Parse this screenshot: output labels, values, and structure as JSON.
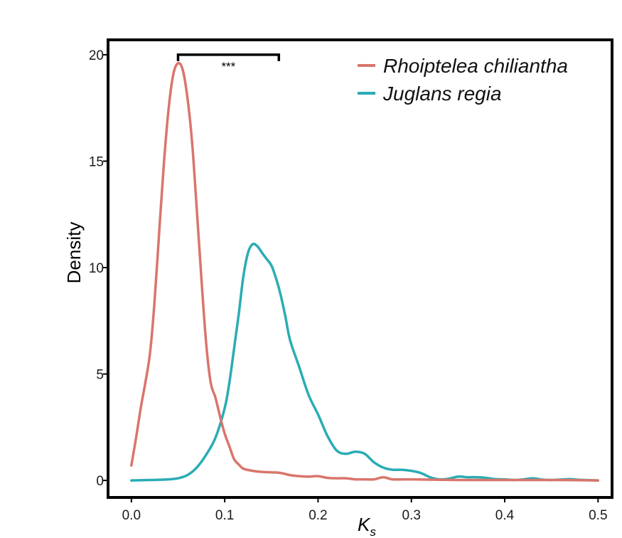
{
  "chart_data": {
    "type": "line",
    "xlabel": "K",
    "xlabel_subscript": "s",
    "ylabel": "Density",
    "xlim": [
      -0.025,
      0.515
    ],
    "ylim": [
      -0.8,
      20.7
    ],
    "x_ticks": [
      "0.0",
      "0.1",
      "0.2",
      "0.3",
      "0.4",
      "0.5"
    ],
    "y_ticks": [
      "0",
      "5",
      "10",
      "15",
      "20"
    ],
    "legend_position": "top-right",
    "significance": {
      "label": "***",
      "x_start": 0.05,
      "x_end": 0.158,
      "y": 20.0
    },
    "series": [
      {
        "name": "Rhoiptelea chiliantha",
        "color": "#d9756c",
        "points": [
          [
            0.0,
            0.7
          ],
          [
            0.005,
            2.0
          ],
          [
            0.01,
            3.4
          ],
          [
            0.015,
            4.6
          ],
          [
            0.02,
            6.0
          ],
          [
            0.025,
            8.5
          ],
          [
            0.03,
            11.8
          ],
          [
            0.035,
            15.0
          ],
          [
            0.04,
            17.5
          ],
          [
            0.045,
            19.1
          ],
          [
            0.05,
            19.6
          ],
          [
            0.055,
            19.3
          ],
          [
            0.06,
            18.0
          ],
          [
            0.065,
            15.9
          ],
          [
            0.07,
            12.8
          ],
          [
            0.075,
            9.5
          ],
          [
            0.08,
            6.5
          ],
          [
            0.085,
            4.6
          ],
          [
            0.09,
            3.9
          ],
          [
            0.095,
            3.0
          ],
          [
            0.1,
            2.2
          ],
          [
            0.105,
            1.6
          ],
          [
            0.11,
            1.0
          ],
          [
            0.115,
            0.75
          ],
          [
            0.12,
            0.55
          ],
          [
            0.13,
            0.45
          ],
          [
            0.14,
            0.4
          ],
          [
            0.15,
            0.38
          ],
          [
            0.16,
            0.35
          ],
          [
            0.17,
            0.25
          ],
          [
            0.18,
            0.2
          ],
          [
            0.19,
            0.18
          ],
          [
            0.2,
            0.2
          ],
          [
            0.21,
            0.12
          ],
          [
            0.22,
            0.1
          ],
          [
            0.23,
            0.1
          ],
          [
            0.24,
            0.05
          ],
          [
            0.25,
            0.05
          ],
          [
            0.26,
            0.05
          ],
          [
            0.27,
            0.15
          ],
          [
            0.28,
            0.05
          ],
          [
            0.3,
            0.05
          ],
          [
            0.35,
            0.02
          ],
          [
            0.4,
            0.02
          ],
          [
            0.45,
            0.02
          ],
          [
            0.5,
            0.0
          ]
        ]
      },
      {
        "name": "Juglans regia",
        "color": "#2aacb4",
        "points": [
          [
            0.0,
            0.0
          ],
          [
            0.02,
            0.02
          ],
          [
            0.04,
            0.05
          ],
          [
            0.05,
            0.1
          ],
          [
            0.06,
            0.25
          ],
          [
            0.07,
            0.6
          ],
          [
            0.08,
            1.2
          ],
          [
            0.09,
            2.0
          ],
          [
            0.1,
            3.4
          ],
          [
            0.105,
            4.6
          ],
          [
            0.11,
            6.2
          ],
          [
            0.115,
            7.8
          ],
          [
            0.12,
            9.6
          ],
          [
            0.125,
            10.7
          ],
          [
            0.13,
            11.1
          ],
          [
            0.135,
            11.0
          ],
          [
            0.14,
            10.7
          ],
          [
            0.145,
            10.4
          ],
          [
            0.15,
            10.1
          ],
          [
            0.155,
            9.5
          ],
          [
            0.16,
            8.7
          ],
          [
            0.165,
            7.7
          ],
          [
            0.17,
            6.6
          ],
          [
            0.18,
            5.3
          ],
          [
            0.19,
            4.0
          ],
          [
            0.2,
            3.1
          ],
          [
            0.21,
            2.1
          ],
          [
            0.22,
            1.4
          ],
          [
            0.23,
            1.25
          ],
          [
            0.24,
            1.35
          ],
          [
            0.25,
            1.25
          ],
          [
            0.26,
            0.85
          ],
          [
            0.27,
            0.6
          ],
          [
            0.28,
            0.5
          ],
          [
            0.29,
            0.5
          ],
          [
            0.3,
            0.45
          ],
          [
            0.31,
            0.35
          ],
          [
            0.32,
            0.15
          ],
          [
            0.33,
            0.05
          ],
          [
            0.34,
            0.08
          ],
          [
            0.35,
            0.18
          ],
          [
            0.36,
            0.15
          ],
          [
            0.37,
            0.15
          ],
          [
            0.38,
            0.12
          ],
          [
            0.39,
            0.06
          ],
          [
            0.4,
            0.05
          ],
          [
            0.41,
            0.02
          ],
          [
            0.42,
            0.05
          ],
          [
            0.43,
            0.1
          ],
          [
            0.44,
            0.04
          ],
          [
            0.45,
            0.02
          ],
          [
            0.46,
            0.04
          ],
          [
            0.47,
            0.06
          ],
          [
            0.48,
            0.03
          ],
          [
            0.5,
            0.0
          ]
        ]
      }
    ]
  }
}
